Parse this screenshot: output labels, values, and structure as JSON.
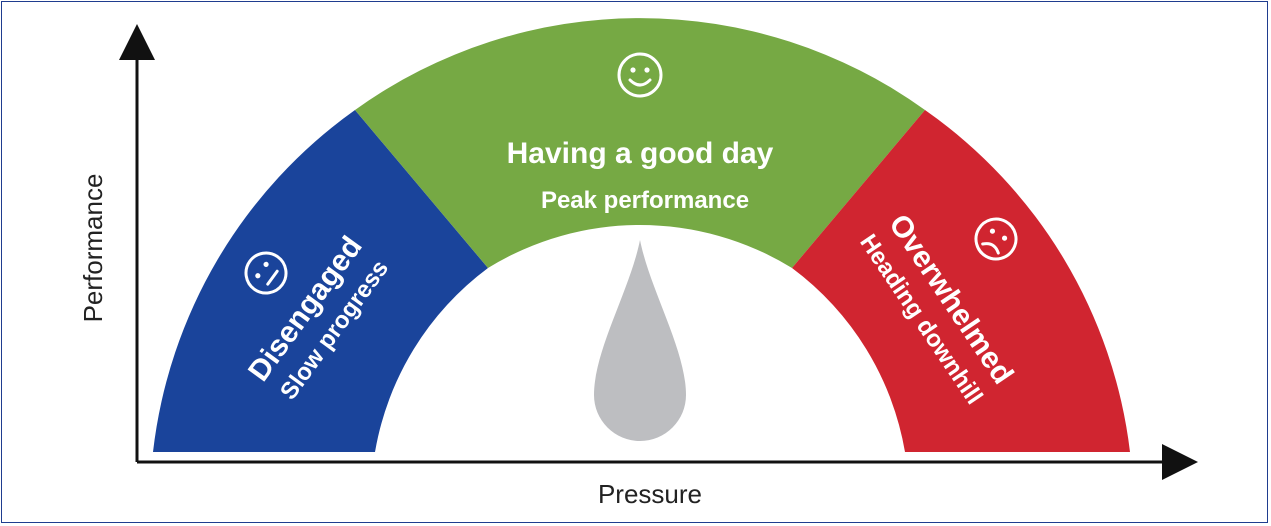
{
  "axes": {
    "y_label": "Performance",
    "x_label": "Pressure"
  },
  "segments": [
    {
      "title": "Disengaged",
      "subtitle": "Slow progress",
      "color": "#1a449b",
      "face": "neutral-face-icon"
    },
    {
      "title": "Having a good day",
      "subtitle": "Peak performance",
      "color": "#76a944",
      "face": "smiley-face-icon"
    },
    {
      "title": "Overwhelmed",
      "subtitle": "Heading downhill",
      "color": "#d02530",
      "face": "sad-face-icon"
    }
  ],
  "needle_color": "#bdbec1",
  "frame_color": "#1f3d8f"
}
